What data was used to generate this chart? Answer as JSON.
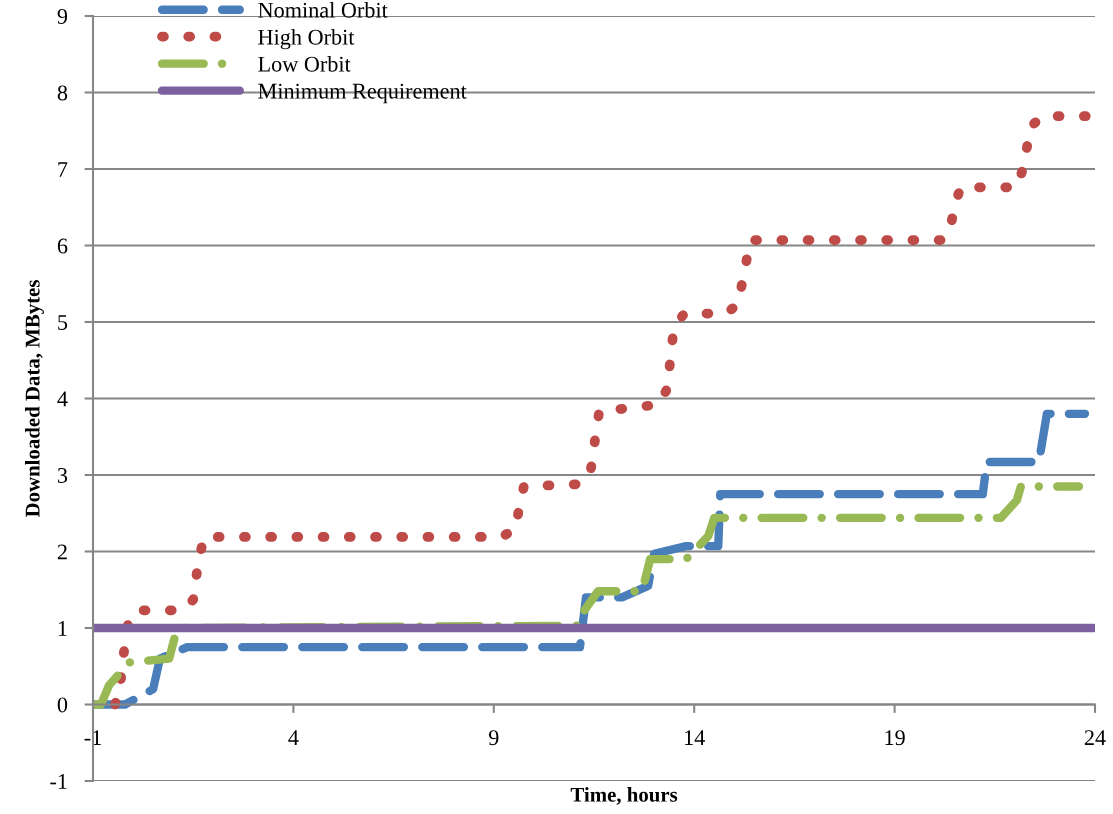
{
  "chart_data": {
    "type": "line",
    "xlabel": "Time, hours",
    "ylabel": "Downloaded Data, MBytes",
    "xlim": [
      -1,
      24
    ],
    "xticks": [
      -1,
      4,
      9,
      14,
      19,
      24
    ],
    "ylim": [
      -1,
      9
    ],
    "yticks": [
      -1,
      0,
      1,
      2,
      3,
      4,
      5,
      6,
      7,
      8,
      9
    ],
    "grid": "y",
    "legend": "top left",
    "series": [
      {
        "name": "Nominal Orbit",
        "color": "#4a7ebb",
        "line_style": "dashed",
        "x": [
          -1,
          -0.2,
          0.5,
          0.67,
          1.35,
          11.15,
          11.3,
          11.6,
          12.2,
          12.85,
          13.0,
          13.8,
          13.85,
          14.6,
          14.65,
          21.2,
          21.3,
          22.6,
          22.8,
          23.75
        ],
        "values": [
          0,
          0,
          0.2,
          0.6,
          0.75,
          0.75,
          1.4,
          1.4,
          1.4,
          1.55,
          1.97,
          2.07,
          2.07,
          2.07,
          2.75,
          2.75,
          3.17,
          3.17,
          3.8,
          3.8
        ]
      },
      {
        "name": "High Orbit",
        "color": "#be4b48",
        "line_style": "dotted",
        "x": [
          -0.45,
          -0.32,
          -0.27,
          -0.2,
          -0.12,
          0.1,
          1.2,
          1.5,
          1.57,
          1.65,
          1.77,
          9.2,
          9.55,
          9.63,
          9.75,
          11.1,
          11.4,
          11.48,
          11.55,
          11.63,
          13.1,
          13.3,
          13.38,
          13.43,
          13.5,
          13.75,
          14.8,
          15.1,
          15.2,
          15.3,
          15.4,
          20.2,
          20.4,
          20.5,
          20.65,
          22.05,
          22.2,
          22.3,
          22.4,
          22.7,
          23.77
        ],
        "values": [
          0,
          0.24,
          0.52,
          0.79,
          1.08,
          1.23,
          1.23,
          1.37,
          1.65,
          1.92,
          2.19,
          2.19,
          2.3,
          2.57,
          2.85,
          2.88,
          3.0,
          3.28,
          3.56,
          3.83,
          3.92,
          4.1,
          4.38,
          4.66,
          4.93,
          5.11,
          5.11,
          5.24,
          5.52,
          5.79,
          6.07,
          6.07,
          6.25,
          6.53,
          6.76,
          6.76,
          7.0,
          7.28,
          7.56,
          7.69,
          7.69
        ]
      },
      {
        "name": "Low Orbit",
        "color": "#98b954",
        "line_style": "dashdot",
        "x": [
          -1,
          -0.8,
          -0.6,
          -0.1,
          0.9,
          1.1,
          11.1,
          11.15,
          11.6,
          12.7,
          12.9,
          13.8,
          14.35,
          14.5,
          21.65,
          22.05,
          22.15,
          23.6
        ],
        "values": [
          0,
          0,
          0.25,
          0.55,
          0.6,
          1.0,
          1.03,
          1.15,
          1.48,
          1.48,
          1.9,
          1.9,
          2.2,
          2.44,
          2.44,
          2.67,
          2.85,
          2.85
        ]
      },
      {
        "name": "Minimum Requirement",
        "color": "#7d60a0",
        "line_style": "solid",
        "x": [
          -1,
          24
        ],
        "values": [
          1,
          1
        ]
      }
    ]
  }
}
